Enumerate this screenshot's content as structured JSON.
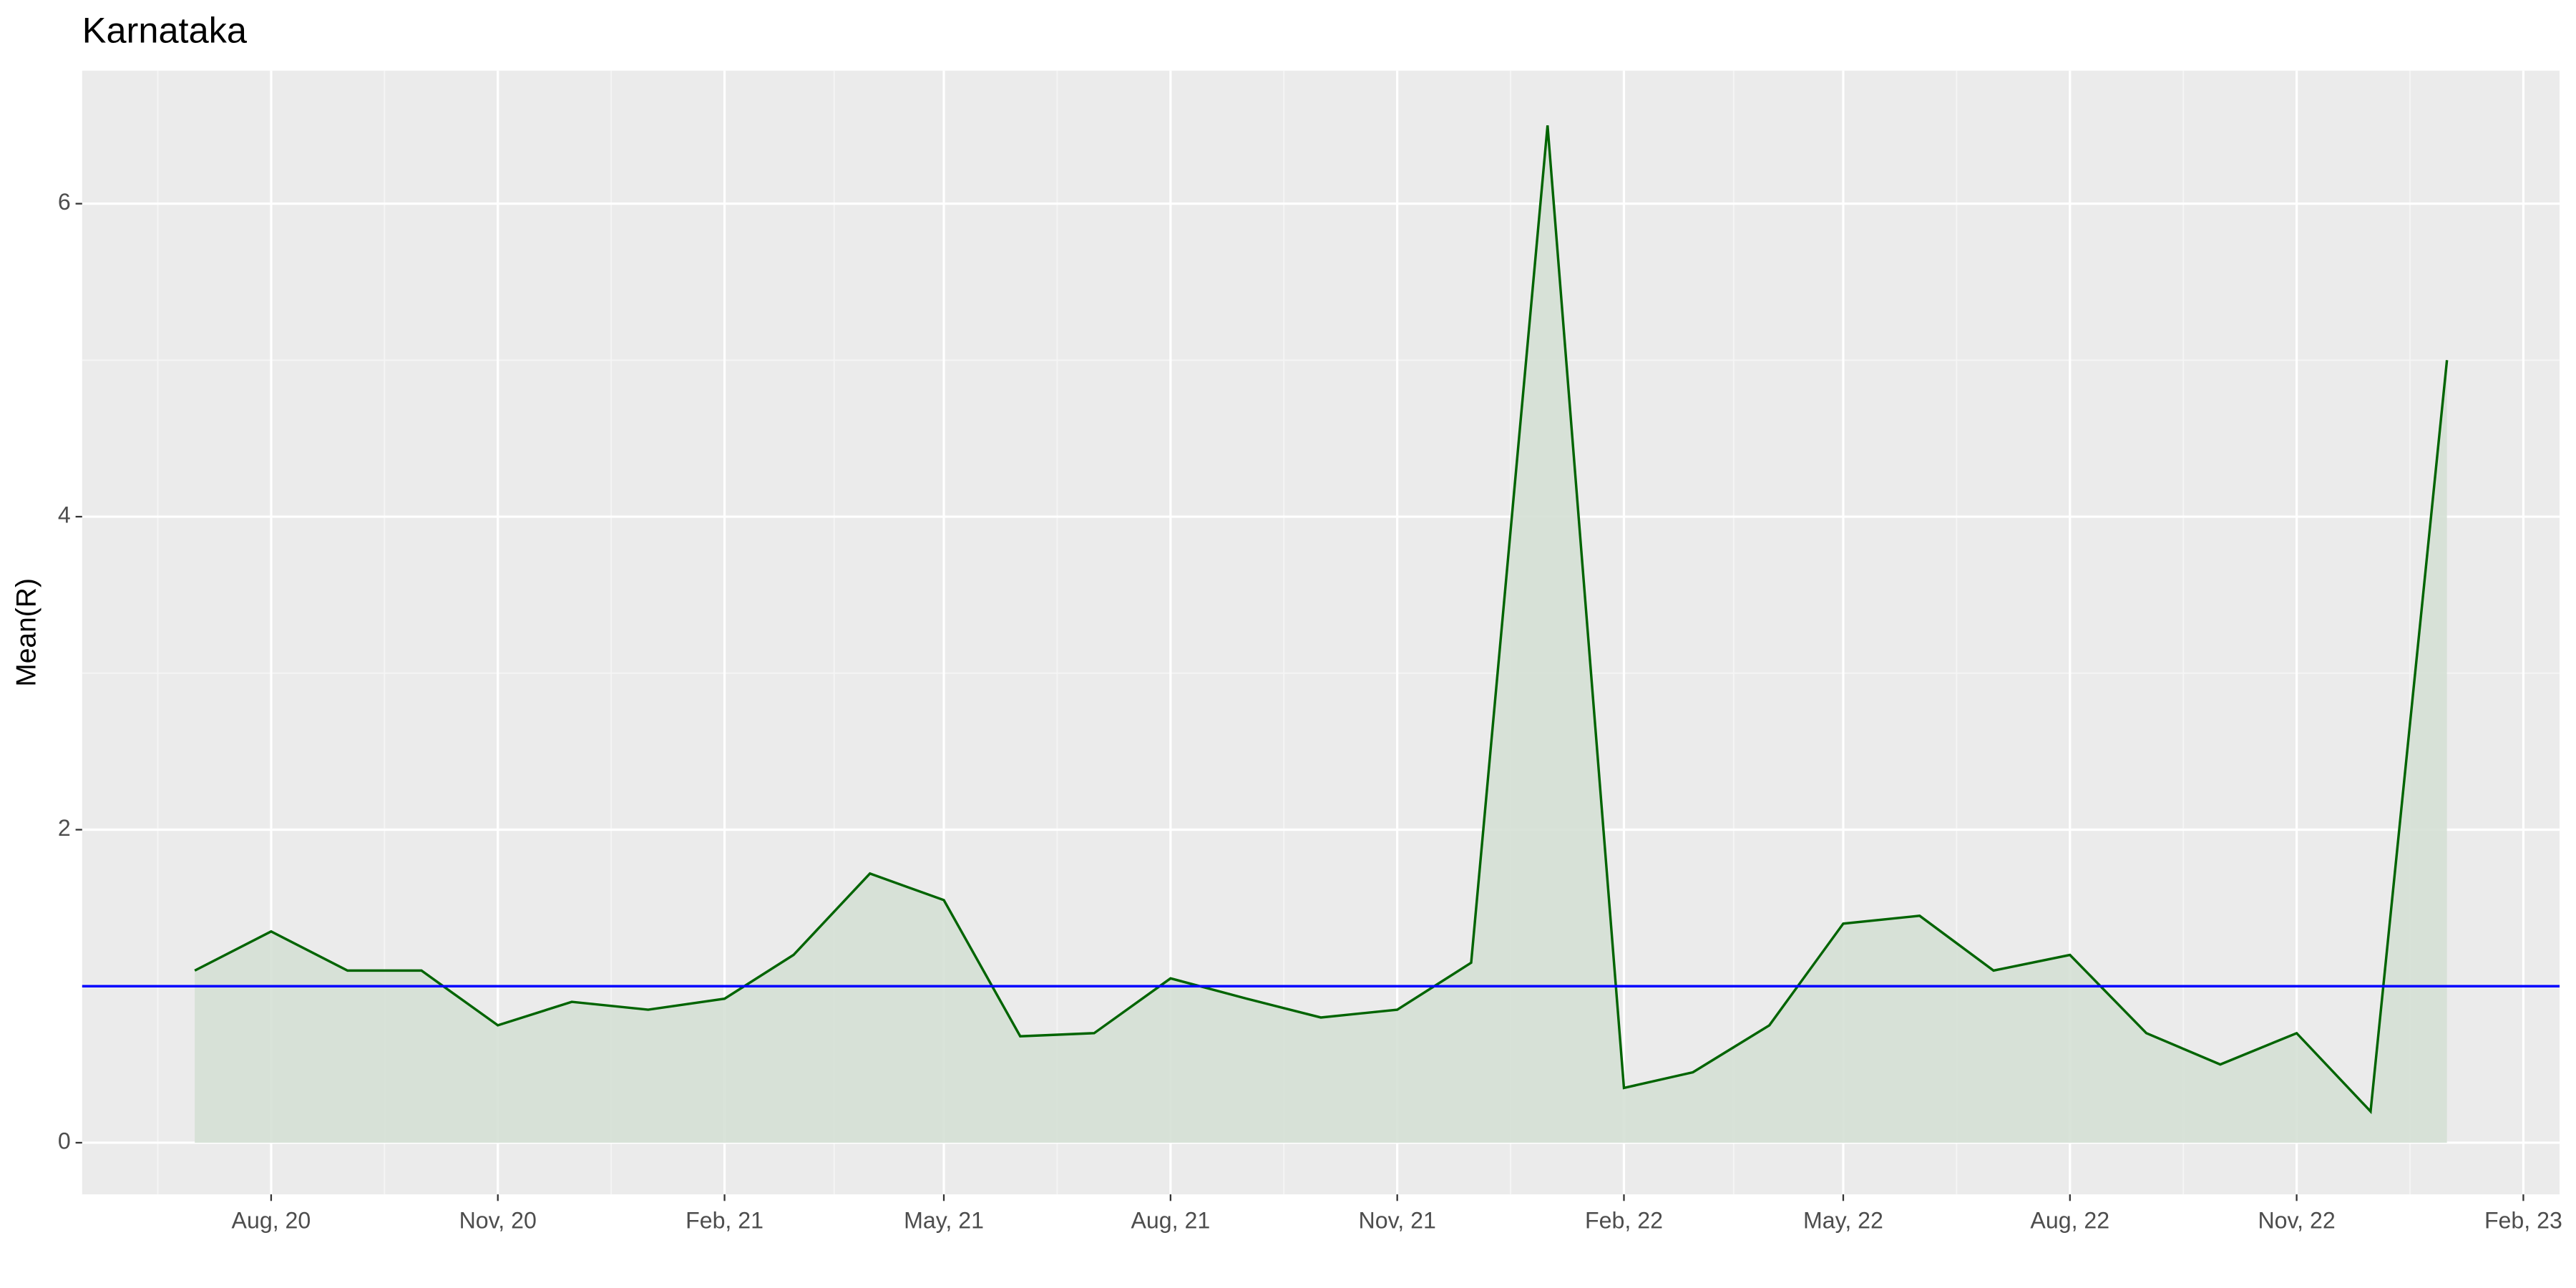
{
  "chart_data": {
    "type": "area",
    "title": "Karnataka",
    "y_label": "Mean(R)",
    "x": [
      "2020-07",
      "2020-08",
      "2020-09",
      "2020-10",
      "2020-11",
      "2020-12",
      "2021-01",
      "2021-02",
      "2021-03",
      "2021-04",
      "2021-05",
      "2021-06",
      "2021-07",
      "2021-08",
      "2021-09",
      "2021-10",
      "2021-11",
      "2021-12",
      "2022-01",
      "2022-02",
      "2022-03",
      "2022-04",
      "2022-05",
      "2022-06",
      "2022-07",
      "2022-08",
      "2022-09",
      "2022-10",
      "2022-11",
      "2022-12",
      "2023-01"
    ],
    "series": [
      {
        "color": "#006400",
        "fill": "#d5e0d5",
        "values": [
          1.1,
          1.35,
          1.1,
          1.1,
          0.75,
          0.9,
          0.85,
          0.92,
          1.2,
          1.72,
          1.55,
          0.68,
          0.7,
          1.05,
          0.92,
          0.8,
          0.85,
          1.15,
          6.5,
          0.35,
          0.45,
          0.75,
          1.4,
          1.45,
          1.1,
          1.2,
          0.7,
          0.5,
          0.7,
          0.2,
          5.0
        ]
      }
    ],
    "hline": 1,
    "hline_color": "#0000ff",
    "ylim": [
      -0.33,
      6.85
    ],
    "yticks": [
      0,
      2,
      4,
      6
    ],
    "xticks": [
      {
        "value": "2020-08",
        "label": "Aug, 20"
      },
      {
        "value": "2020-11",
        "label": "Nov, 20"
      },
      {
        "value": "2021-02",
        "label": "Feb, 21"
      },
      {
        "value": "2021-05",
        "label": "May, 21"
      },
      {
        "value": "2021-08",
        "label": "Aug, 21"
      },
      {
        "value": "2021-11",
        "label": "Nov, 21"
      },
      {
        "value": "2022-02",
        "label": "Feb, 22"
      },
      {
        "value": "2022-05",
        "label": "May, 22"
      },
      {
        "value": "2022-08",
        "label": "Aug, 22"
      },
      {
        "value": "2022-11",
        "label": "Nov, 22"
      },
      {
        "value": "2023-02",
        "label": "Feb, 23"
      }
    ],
    "grid": true
  }
}
